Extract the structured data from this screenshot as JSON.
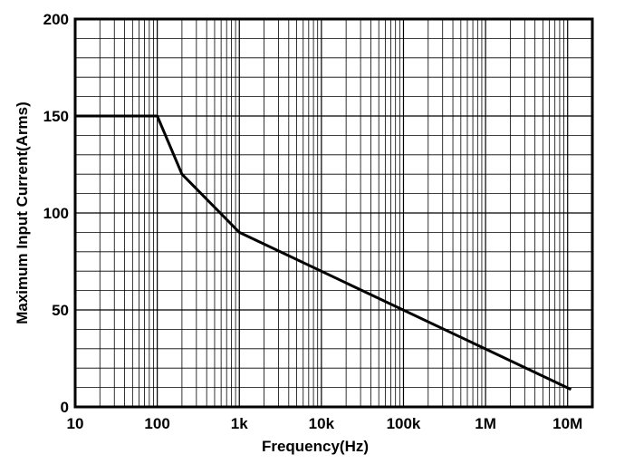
{
  "chart_data": {
    "type": "line",
    "title": "",
    "xlabel": "Frequency(Hz)",
    "ylabel": "Maximum Input Current(Arms)",
    "xscale": "log",
    "xlim": [
      10,
      20000000
    ],
    "ylim": [
      0,
      200
    ],
    "grid": true,
    "x_ticks": [
      {
        "value": 10,
        "label": "10"
      },
      {
        "value": 100,
        "label": "100"
      },
      {
        "value": 1000,
        "label": "1k"
      },
      {
        "value": 10000,
        "label": "10k"
      },
      {
        "value": 100000,
        "label": "100k"
      },
      {
        "value": 1000000,
        "label": "1M"
      },
      {
        "value": 10000000,
        "label": "10M"
      }
    ],
    "y_ticks": [
      {
        "value": 0,
        "label": "0"
      },
      {
        "value": 50,
        "label": "50"
      },
      {
        "value": 100,
        "label": "100"
      },
      {
        "value": 150,
        "label": "150"
      },
      {
        "value": 200,
        "label": "200"
      }
    ],
    "series": [
      {
        "name": "Maximum Input Current",
        "color": "#000000",
        "x": [
          10,
          100,
          200,
          1000,
          11000000
        ],
        "y": [
          150,
          150,
          120,
          90,
          9
        ]
      }
    ]
  }
}
